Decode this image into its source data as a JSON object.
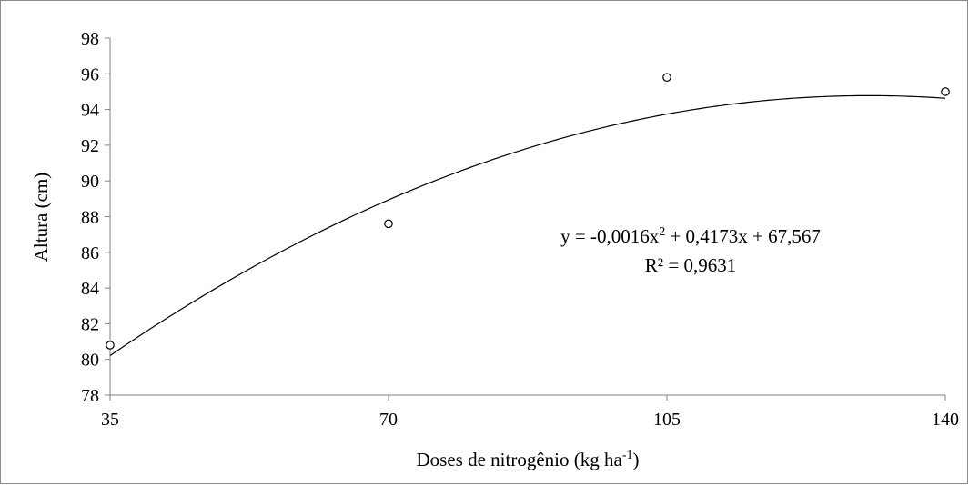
{
  "chart_data": {
    "type": "scatter",
    "title": "",
    "xlabel": {
      "main": "Doses de nitrogênio (kg ha",
      "sup": "-1",
      "close": ")"
    },
    "ylabel": "Altura (cm)",
    "xlim": [
      35,
      140
    ],
    "ylim": [
      78,
      98
    ],
    "x_ticks": [
      35,
      70,
      105,
      140
    ],
    "y_ticks": [
      78,
      80,
      82,
      84,
      86,
      88,
      90,
      92,
      94,
      96,
      98
    ],
    "grid": false,
    "legend": "none",
    "series": [
      {
        "marker": "open-circle",
        "x": [
          35,
          70,
          105,
          140
        ],
        "y": [
          80.8,
          87.6,
          95.8,
          95.0
        ]
      }
    ],
    "trendline": {
      "type": "polynomial-2",
      "a": -0.0016,
      "b": 0.4173,
      "c": 67.567,
      "equation": {
        "pre": "y = -0,0016x",
        "sup": "2",
        "post": " + 0,4173x + 67,567"
      },
      "r2": "R² = 0,9631"
    },
    "colors": {
      "line": "#000000",
      "axis": "#808080",
      "marker": "#000000"
    }
  }
}
